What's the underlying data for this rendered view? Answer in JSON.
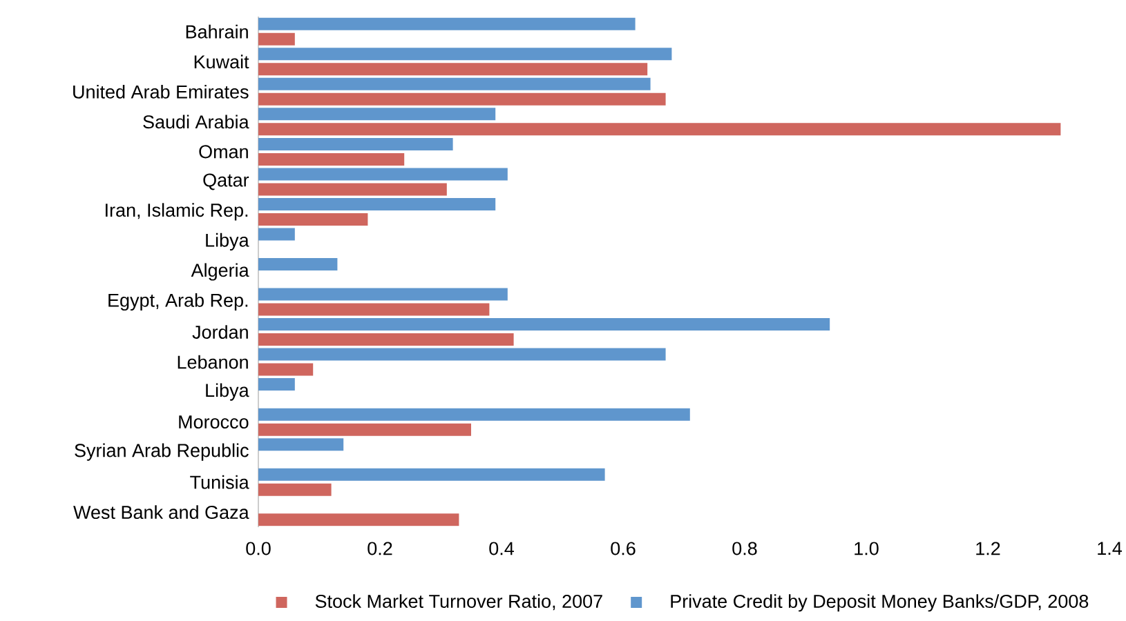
{
  "chart_data": {
    "type": "bar",
    "orientation": "horizontal",
    "categories": [
      "Bahrain",
      "Kuwait",
      "United Arab Emirates",
      "Saudi Arabia",
      "Oman",
      "Qatar",
      "Iran, Islamic Rep.",
      "Libya",
      "Algeria",
      "Egypt, Arab Rep.",
      "Jordan",
      "Lebanon",
      "Libya",
      "Morocco",
      "Syrian Arab Republic",
      "Tunisia",
      "West Bank and Gaza"
    ],
    "series": [
      {
        "name": "Stock Market Turnover Ratio, 2007",
        "color": "#cf665e",
        "values": [
          0.06,
          0.64,
          0.67,
          1.32,
          0.24,
          0.31,
          0.18,
          null,
          null,
          0.38,
          0.42,
          0.09,
          null,
          0.35,
          null,
          0.12,
          0.33
        ]
      },
      {
        "name": "Private Credit by Deposit Money Banks/GDP, 2008",
        "color": "#5f96cd",
        "values": [
          0.62,
          0.68,
          0.645,
          0.39,
          0.32,
          0.41,
          0.39,
          0.06,
          0.13,
          0.41,
          0.94,
          0.67,
          0.06,
          0.71,
          0.14,
          0.57,
          null
        ]
      }
    ],
    "xlim": [
      0,
      1.4
    ],
    "xticks": [
      {
        "value": 0,
        "label": "0.0"
      },
      {
        "value": 0.2,
        "label": "0.2"
      },
      {
        "value": 0.4,
        "label": "0.4"
      },
      {
        "value": 0.6,
        "label": "0.6"
      },
      {
        "value": 0.8,
        "label": "0.8"
      },
      {
        "value": 1,
        "label": "1.0"
      },
      {
        "value": 1.2,
        "label": "1.2"
      },
      {
        "value": 1.4,
        "label": "1.4"
      }
    ],
    "legend": "bottom"
  }
}
